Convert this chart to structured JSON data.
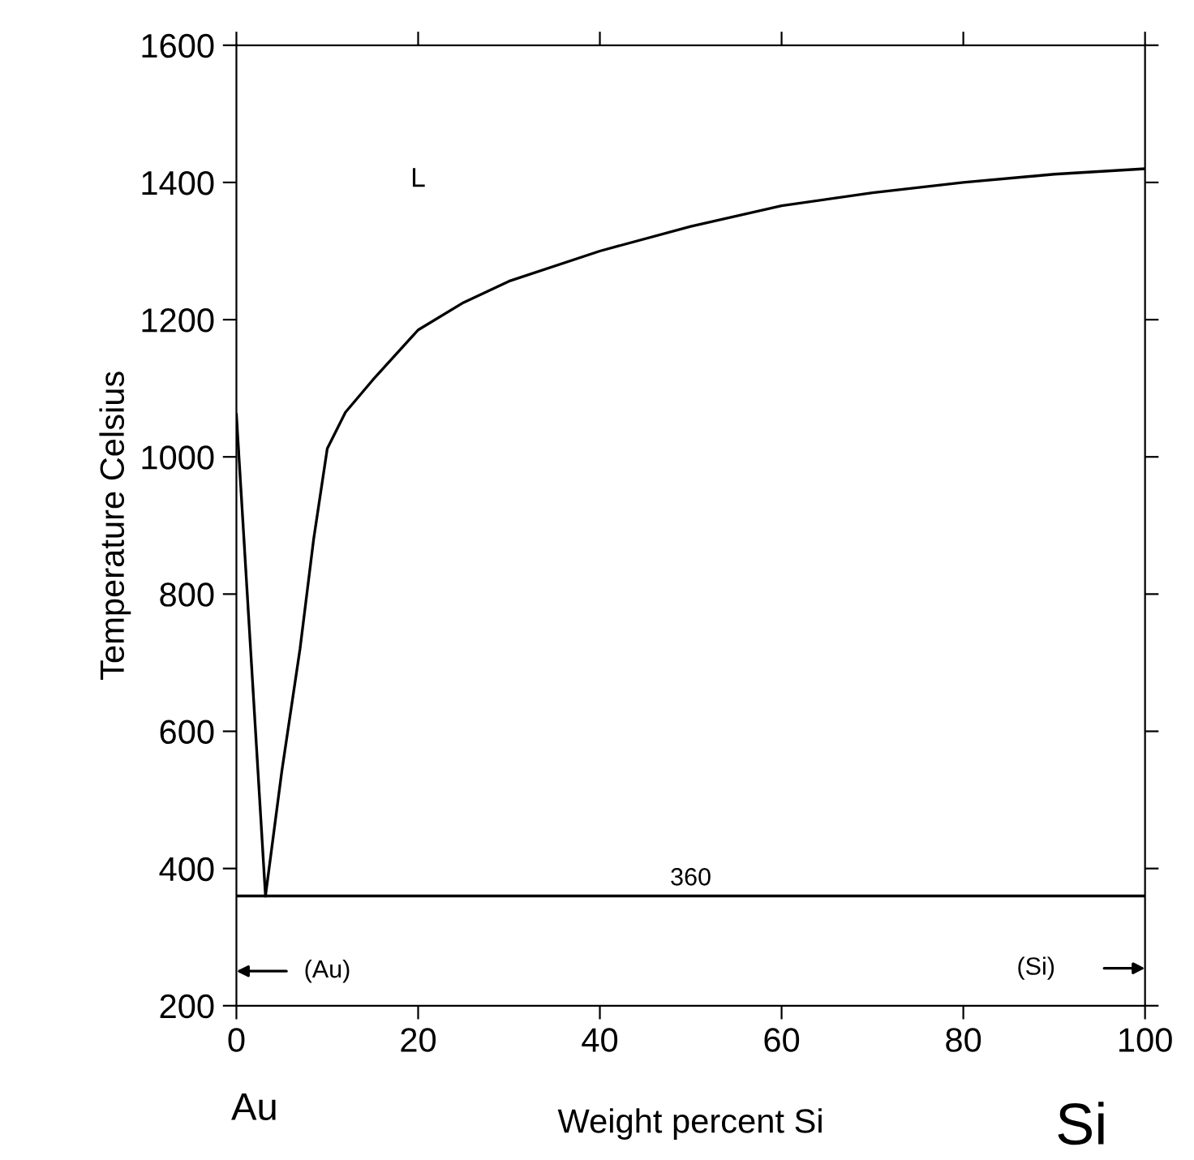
{
  "chart_data": {
    "type": "line",
    "xlabel": "Weight percent Si",
    "ylabel": "Temperature Celsius",
    "xlim": [
      0,
      100
    ],
    "ylim": [
      200,
      1600
    ],
    "xticks": [
      0,
      20,
      40,
      60,
      80,
      100
    ],
    "yticks": [
      200,
      400,
      600,
      800,
      1000,
      1200,
      1400,
      1600
    ],
    "grid": false,
    "marker": "none",
    "line_style": "solid",
    "series": [
      {
        "color": "#000000",
        "x": [
          0,
          3.2
        ],
        "values": [
          1062,
          360
        ]
      },
      {
        "color": "#000000",
        "x": [
          3.2,
          5,
          7,
          8.5,
          10,
          12,
          15,
          20,
          25,
          30,
          40,
          50,
          60,
          70,
          80,
          90,
          100
        ],
        "values": [
          360,
          542,
          720,
          880,
          1012,
          1065,
          1112,
          1185,
          1225,
          1256,
          1300,
          1336,
          1366,
          1385,
          1400,
          1412,
          1420
        ]
      }
    ],
    "ref_lines": [
      {
        "axis": "y",
        "value": 360,
        "label": "360",
        "color": "#000000"
      }
    ],
    "annotations": [
      "L",
      "(Au)",
      "(Si)",
      "Au",
      "Si"
    ]
  }
}
